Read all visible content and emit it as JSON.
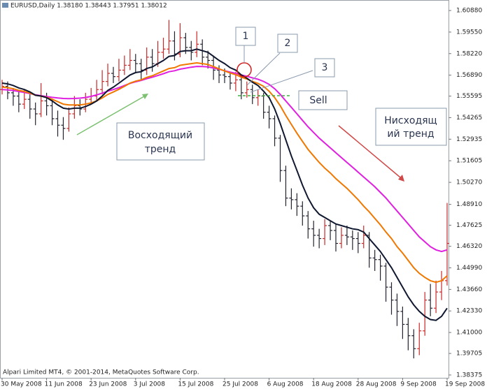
{
  "chart_data": {
    "type": "ohlc",
    "title": "EURUSD,Daily  1.38180 1.38443 1.37951 1.38012",
    "footer": "Alpari Limited MT4, © 2001-2014, MetaQuotes Software Corp.",
    "annotations": {
      "markers": [
        "1",
        "2",
        "3"
      ],
      "sell": "Sell",
      "uptrend": [
        "Восходящий",
        "тренд"
      ],
      "downtrend": [
        "Нисходящ",
        "ий тренд"
      ]
    },
    "categories": [
      "30 May 2008",
      null,
      null,
      null,
      null,
      null,
      null,
      null,
      "11 Jun 2008",
      null,
      null,
      null,
      null,
      null,
      null,
      null,
      "23 Jun 2008",
      null,
      null,
      null,
      null,
      null,
      null,
      null,
      "3 Jul 2008",
      null,
      null,
      null,
      null,
      null,
      null,
      null,
      "15 Jul 2008",
      null,
      null,
      null,
      null,
      null,
      null,
      null,
      "25 Jul 2008",
      null,
      null,
      null,
      null,
      null,
      null,
      null,
      "6 Aug 2008",
      null,
      null,
      null,
      null,
      null,
      null,
      null,
      "18 Aug 2008",
      null,
      null,
      null,
      null,
      null,
      null,
      null,
      "28 Aug 2008",
      null,
      null,
      null,
      null,
      null,
      null,
      null,
      "9 Sep 2008",
      null,
      null,
      null,
      null,
      null,
      null,
      null,
      "19 Sep 2008"
    ],
    "open": [
      1.56,
      1.562,
      1.558,
      1.556,
      1.551,
      1.554,
      1.548,
      1.545,
      1.553,
      1.55,
      1.542,
      1.538,
      1.536,
      1.545,
      1.55,
      1.548,
      1.554,
      1.556,
      1.56,
      1.565,
      1.57,
      1.568,
      1.572,
      1.575,
      1.578,
      1.576,
      1.572,
      1.58,
      1.576,
      1.583,
      1.585,
      1.59,
      1.582,
      1.592,
      1.586,
      1.583,
      1.588,
      1.58,
      1.578,
      1.572,
      1.569,
      1.568,
      1.564,
      1.566,
      1.558,
      1.56,
      1.555,
      1.556,
      1.546,
      1.542,
      1.53,
      1.51,
      1.493,
      1.492,
      1.488,
      1.482,
      1.474,
      1.47,
      1.468,
      1.476,
      1.473,
      1.465,
      1.47,
      1.469,
      1.468,
      1.465,
      1.47,
      1.456,
      1.455,
      1.451,
      1.438,
      1.43,
      1.423,
      1.415,
      1.408,
      1.4,
      1.411,
      1.43,
      1.425,
      1.435,
      1.442
    ],
    "high": [
      1.566,
      1.565,
      1.561,
      1.559,
      1.56,
      1.557,
      1.552,
      1.564,
      1.558,
      1.554,
      1.547,
      1.543,
      1.549,
      1.556,
      1.554,
      1.558,
      1.561,
      1.566,
      1.572,
      1.576,
      1.574,
      1.579,
      1.581,
      1.585,
      1.582,
      1.579,
      1.586,
      1.585,
      1.59,
      1.592,
      1.603,
      1.596,
      1.601,
      1.595,
      1.59,
      1.596,
      1.591,
      1.584,
      1.581,
      1.575,
      1.573,
      1.571,
      1.571,
      1.569,
      1.565,
      1.563,
      1.56,
      1.558,
      1.55,
      1.544,
      1.532,
      1.513,
      1.499,
      1.496,
      1.491,
      1.485,
      1.479,
      1.474,
      1.48,
      1.479,
      1.477,
      1.475,
      1.476,
      1.473,
      1.472,
      1.476,
      1.472,
      1.461,
      1.458,
      1.453,
      1.441,
      1.434,
      1.426,
      1.419,
      1.412,
      1.416,
      1.435,
      1.44,
      1.442,
      1.448,
      1.49
    ],
    "low": [
      1.557,
      1.554,
      1.55,
      1.546,
      1.548,
      1.542,
      1.538,
      1.543,
      1.544,
      1.538,
      1.531,
      1.529,
      1.534,
      1.542,
      1.544,
      1.546,
      1.551,
      1.553,
      1.557,
      1.562,
      1.564,
      1.565,
      1.569,
      1.572,
      1.57,
      1.566,
      1.569,
      1.571,
      1.574,
      1.579,
      1.582,
      1.578,
      1.58,
      1.582,
      1.578,
      1.58,
      1.575,
      1.573,
      1.566,
      1.564,
      1.564,
      1.56,
      1.559,
      1.554,
      1.555,
      1.551,
      1.55,
      1.542,
      1.536,
      1.525,
      1.503,
      1.488,
      1.486,
      1.482,
      1.476,
      1.468,
      1.463,
      1.462,
      1.464,
      1.467,
      1.46,
      1.462,
      1.464,
      1.461,
      1.459,
      1.462,
      1.45,
      1.448,
      1.442,
      1.429,
      1.421,
      1.414,
      1.406,
      1.399,
      1.394,
      1.396,
      1.408,
      1.42,
      1.422,
      1.43,
      1.439
    ],
    "close": [
      1.562,
      1.558,
      1.556,
      1.551,
      1.554,
      1.548,
      1.545,
      1.553,
      1.55,
      1.542,
      1.538,
      1.536,
      1.545,
      1.55,
      1.548,
      1.554,
      1.556,
      1.56,
      1.565,
      1.57,
      1.568,
      1.572,
      1.575,
      1.578,
      1.576,
      1.572,
      1.58,
      1.576,
      1.583,
      1.585,
      1.59,
      1.582,
      1.592,
      1.586,
      1.583,
      1.588,
      1.58,
      1.578,
      1.572,
      1.569,
      1.568,
      1.564,
      1.566,
      1.558,
      1.56,
      1.555,
      1.556,
      1.546,
      1.542,
      1.53,
      1.51,
      1.493,
      1.492,
      1.488,
      1.482,
      1.474,
      1.47,
      1.468,
      1.476,
      1.473,
      1.465,
      1.47,
      1.469,
      1.468,
      1.465,
      1.47,
      1.456,
      1.455,
      1.451,
      1.438,
      1.43,
      1.423,
      1.415,
      1.408,
      1.4,
      1.411,
      1.43,
      1.425,
      1.435,
      1.442,
      1.465
    ],
    "up_color": "#c82828",
    "down_color": "#22232e",
    "lines": [
      {
        "color": "#e020e0",
        "values": [
          1.56,
          1.5598,
          1.5594,
          1.5588,
          1.5582,
          1.5575,
          1.5568,
          1.5562,
          1.5557,
          1.5552,
          1.5548,
          1.5545,
          1.5544,
          1.5545,
          1.5547,
          1.5551,
          1.5558,
          1.5567,
          1.5578,
          1.559,
          1.56,
          1.5612,
          1.5625,
          1.5638,
          1.5648,
          1.5656,
          1.5667,
          1.5676,
          1.5687,
          1.5698,
          1.571,
          1.5716,
          1.5726,
          1.5732,
          1.5738,
          1.5743,
          1.5742,
          1.574,
          1.5733,
          1.5725,
          1.5716,
          1.5708,
          1.57,
          1.569,
          1.5682,
          1.5672,
          1.5664,
          1.565,
          1.5632,
          1.5605,
          1.557,
          1.553,
          1.549,
          1.545,
          1.541,
          1.537,
          1.5335,
          1.53,
          1.527,
          1.524,
          1.521,
          1.518,
          1.515,
          1.512,
          1.509,
          1.506,
          1.503,
          1.5,
          1.4965,
          1.493,
          1.489,
          1.485,
          1.481,
          1.477,
          1.473,
          1.469,
          1.466,
          1.463,
          1.461,
          1.46,
          1.461
        ]
      },
      {
        "color": "#f07800",
        "values": [
          1.5615,
          1.5612,
          1.5605,
          1.5595,
          1.5588,
          1.5578,
          1.5565,
          1.556,
          1.5552,
          1.554,
          1.5525,
          1.551,
          1.5505,
          1.5505,
          1.5505,
          1.551,
          1.5518,
          1.553,
          1.5548,
          1.557,
          1.5585,
          1.5602,
          1.562,
          1.564,
          1.5652,
          1.566,
          1.5675,
          1.5685,
          1.57,
          1.5715,
          1.573,
          1.5735,
          1.575,
          1.5755,
          1.576,
          1.5765,
          1.576,
          1.5755,
          1.5742,
          1.5728,
          1.5715,
          1.5702,
          1.5692,
          1.5676,
          1.5665,
          1.565,
          1.5638,
          1.562,
          1.559,
          1.555,
          1.55,
          1.544,
          1.5385,
          1.533,
          1.528,
          1.523,
          1.519,
          1.515,
          1.5115,
          1.5085,
          1.505,
          1.502,
          1.499,
          1.4955,
          1.492,
          1.488,
          1.4845,
          1.4805,
          1.4765,
          1.472,
          1.468,
          1.463,
          1.459,
          1.4545,
          1.45,
          1.4465,
          1.444,
          1.442,
          1.441,
          1.442,
          1.445
        ]
      },
      {
        "color": "#101830",
        "values": [
          1.564,
          1.5635,
          1.5625,
          1.561,
          1.56,
          1.5585,
          1.5565,
          1.556,
          1.555,
          1.553,
          1.5505,
          1.5485,
          1.548,
          1.5485,
          1.5485,
          1.5495,
          1.551,
          1.553,
          1.556,
          1.5595,
          1.5615,
          1.564,
          1.5665,
          1.569,
          1.5705,
          1.571,
          1.573,
          1.574,
          1.576,
          1.578,
          1.5805,
          1.581,
          1.5835,
          1.584,
          1.584,
          1.585,
          1.584,
          1.583,
          1.5805,
          1.578,
          1.576,
          1.5735,
          1.572,
          1.569,
          1.567,
          1.5645,
          1.5625,
          1.559,
          1.555,
          1.548,
          1.539,
          1.529,
          1.519,
          1.51,
          1.501,
          1.493,
          1.487,
          1.483,
          1.481,
          1.479,
          1.477,
          1.476,
          1.475,
          1.474,
          1.4735,
          1.472,
          1.468,
          1.464,
          1.46,
          1.455,
          1.45,
          1.444,
          1.438,
          1.432,
          1.427,
          1.423,
          1.42,
          1.418,
          1.4175,
          1.42,
          1.425
        ]
      }
    ],
    "ylim": [
      1.382,
      1.6153
    ],
    "yticks": [
      {
        "value": 1.6088,
        "label": "1.60880"
      },
      {
        "value": 1.5955,
        "label": "1.59550"
      },
      {
        "value": 1.5822,
        "label": "1.58220"
      },
      {
        "value": 1.5689,
        "label": "1.56890"
      },
      {
        "value": 1.55595,
        "label": "1.55595"
      },
      {
        "value": 1.54265,
        "label": "1.54265"
      },
      {
        "value": 1.52935,
        "label": "1.52935"
      },
      {
        "value": 1.51605,
        "label": "1.51605"
      },
      {
        "value": 1.5027,
        "label": "1.50270"
      },
      {
        "value": 1.4891,
        "label": "1.48910"
      },
      {
        "value": 1.47625,
        "label": "1.47625"
      },
      {
        "value": 1.4632,
        "label": "1.46320"
      },
      {
        "value": 1.4499,
        "label": "1.44990"
      },
      {
        "value": 1.4366,
        "label": "1.43660"
      },
      {
        "value": 1.4233,
        "label": "1.42330"
      },
      {
        "value": 1.41,
        "label": "1.41000"
      },
      {
        "value": 1.39705,
        "label": "1.39705"
      },
      {
        "value": 1.38375,
        "label": "1.38375"
      }
    ]
  }
}
